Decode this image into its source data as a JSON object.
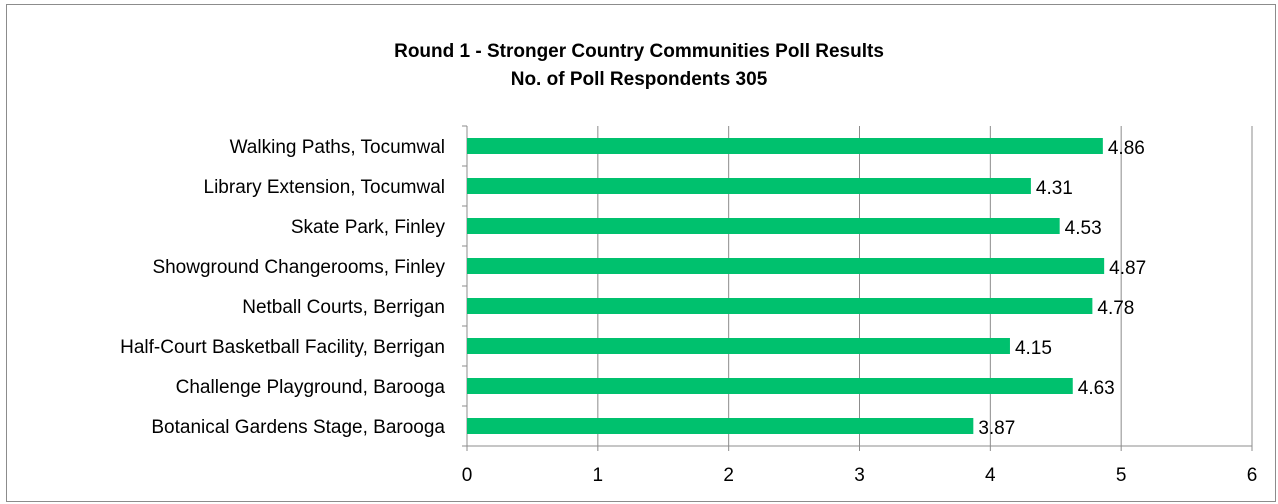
{
  "chart_data": {
    "type": "bar",
    "orientation": "horizontal",
    "title": "Round 1 - Stronger Country Communities Poll Results",
    "subtitle": "No. of Poll Respondents 305",
    "categories": [
      "Walking Paths, Tocumwal",
      "Library Extension, Tocumwal",
      "Skate Park, Finley",
      "Showground Changerooms, Finley",
      "Netball Courts, Berrigan",
      "Half-Court Basketball Facility, Berrigan",
      "Challenge Playground, Barooga",
      "Botanical Gardens Stage, Barooga"
    ],
    "values": [
      4.86,
      4.31,
      4.53,
      4.87,
      4.78,
      4.15,
      4.63,
      3.87
    ],
    "data_labels": [
      "4.86",
      "4.31",
      "4.53",
      "4.87",
      "4.78",
      "4.15",
      "4.63",
      "3.87"
    ],
    "xlim": [
      0,
      6
    ],
    "x_ticks": [
      "0",
      "1",
      "2",
      "3",
      "4",
      "5",
      "6"
    ],
    "grid": true,
    "legend": "none",
    "bar_color": "#00c16e",
    "grid_color": "#8c8c8c"
  }
}
